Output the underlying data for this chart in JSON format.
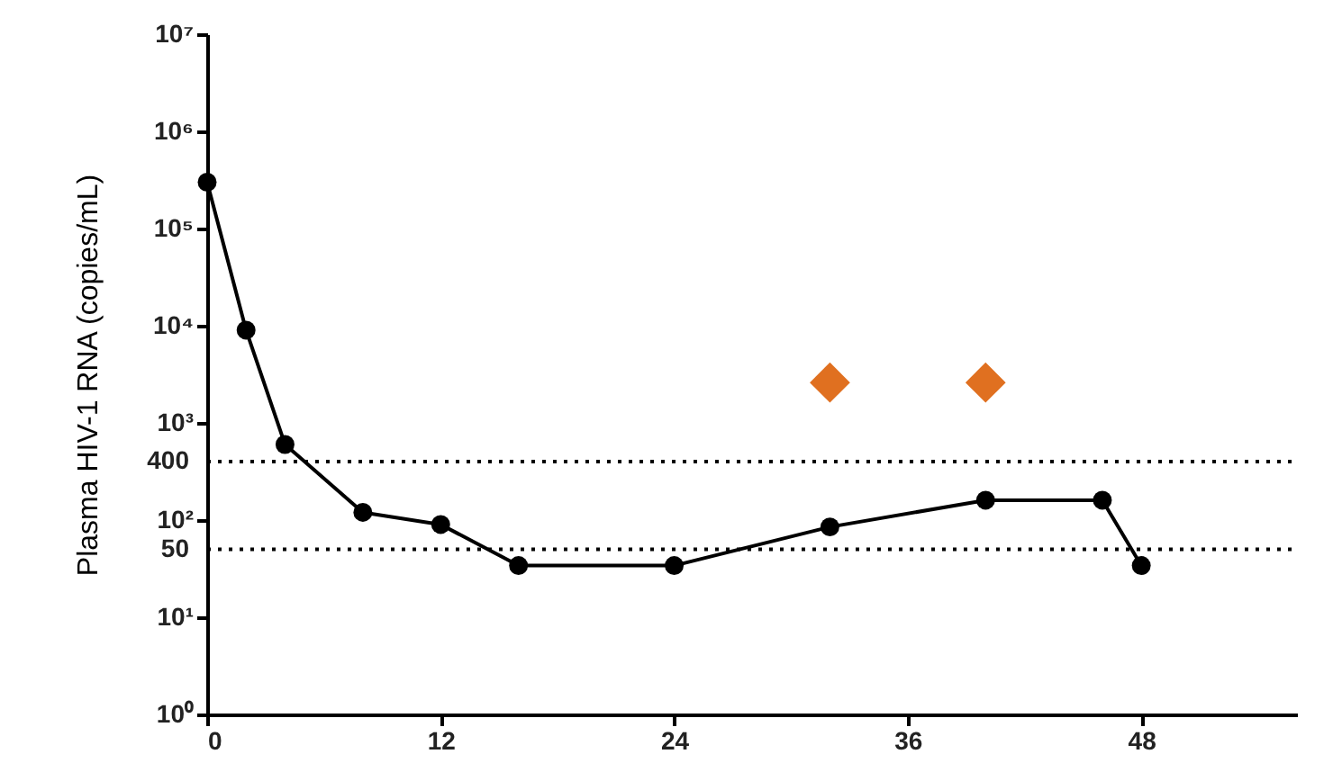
{
  "chart_data": {
    "type": "line",
    "ylabel": "Plasma HIV-1 RNA (copies/mL)",
    "log": "y",
    "xlim": [
      0,
      56
    ],
    "xticks": [
      0,
      12,
      24,
      36,
      48
    ],
    "ylim": [
      1,
      10000000
    ],
    "yticks": [
      {
        "value": 1,
        "label": "10⁰"
      },
      {
        "value": 10,
        "label": "10¹"
      },
      {
        "value": 100,
        "label": "10²"
      },
      {
        "value": 1000,
        "label": "10³"
      },
      {
        "value": 10000,
        "label": "10⁴"
      },
      {
        "value": 100000,
        "label": "10⁵"
      },
      {
        "value": 1000000,
        "label": "10⁶"
      },
      {
        "value": 10000000,
        "label": "10⁷"
      }
    ],
    "series": [
      {
        "color": "#000000",
        "marker": "circle",
        "line_style": "solid",
        "x": [
          0,
          2,
          4,
          8,
          12,
          16,
          24,
          32,
          40,
          46,
          48
        ],
        "values": [
          300000,
          9000,
          600,
          120,
          90,
          34,
          34,
          85,
          160,
          160,
          34
        ]
      },
      {
        "type": "scatter",
        "color": "#e07020",
        "marker": "diamond",
        "x": [
          32
        ],
        "values": [
          2600
        ]
      },
      {
        "type": "scatter",
        "color": "#e07020",
        "marker": "diamond",
        "x": [
          40
        ],
        "values": [
          2600
        ]
      }
    ],
    "ref_lines": [
      {
        "axis": "y",
        "value": 400,
        "label": "400",
        "line_style": "dotted"
      },
      {
        "axis": "y",
        "value": 50,
        "label": "50",
        "line_style": "dotted"
      }
    ]
  }
}
